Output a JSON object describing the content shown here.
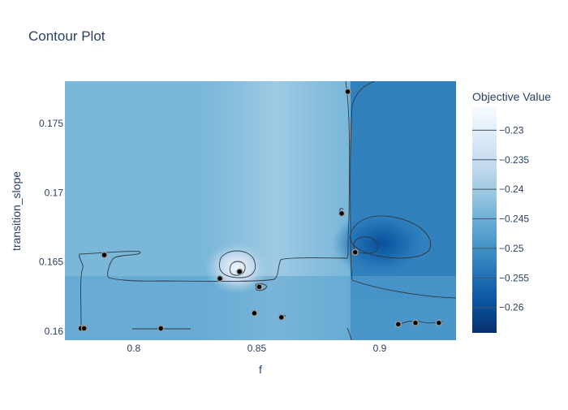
{
  "chart_data": {
    "type": "contour",
    "title": "Contour Plot",
    "xlabel": "f",
    "ylabel": "transition_slope",
    "xlim": [
      0.772,
      0.931
    ],
    "ylim": [
      0.15935,
      0.17805
    ],
    "x_ticks": [
      0.8,
      0.85,
      0.9
    ],
    "x_tick_labels": [
      "0.8",
      "0.85",
      "0.9"
    ],
    "y_ticks": [
      0.16,
      0.165,
      0.17,
      0.175
    ],
    "y_tick_labels": [
      "0.16",
      "0.165",
      "0.17",
      "0.175"
    ],
    "colorbar": {
      "title": "Objective Value",
      "range": [
        -0.2643,
        -0.2261
      ],
      "ticks": [
        -0.23,
        -0.235,
        -0.24,
        -0.245,
        -0.25,
        -0.255,
        -0.26
      ],
      "tick_labels": [
        "−0.23",
        "−0.235",
        "−0.24",
        "−0.245",
        "−0.25",
        "−0.255",
        "−0.26"
      ],
      "colorscale": [
        "#08306b",
        "#08519c",
        "#2171b5",
        "#4292c6",
        "#6baed6",
        "#9ecae1",
        "#c6dbef",
        "#deebf7",
        "#f7fbff"
      ]
    },
    "trials": [
      {
        "f": 0.788,
        "transition_slope": 0.1655
      },
      {
        "f": 0.7785,
        "transition_slope": 0.1602
      },
      {
        "f": 0.7798,
        "transition_slope": 0.1602
      },
      {
        "f": 0.811,
        "transition_slope": 0.1602
      },
      {
        "f": 0.835,
        "transition_slope": 0.1638
      },
      {
        "f": 0.843,
        "transition_slope": 0.1643
      },
      {
        "f": 0.849,
        "transition_slope": 0.1613
      },
      {
        "f": 0.851,
        "transition_slope": 0.1632
      },
      {
        "f": 0.86,
        "transition_slope": 0.161
      },
      {
        "f": 0.8845,
        "transition_slope": 0.1685
      },
      {
        "f": 0.887,
        "transition_slope": 0.1773
      },
      {
        "f": 0.89,
        "transition_slope": 0.1657
      },
      {
        "f": 0.9075,
        "transition_slope": 0.1605
      },
      {
        "f": 0.9145,
        "transition_slope": 0.1606
      },
      {
        "f": 0.924,
        "transition_slope": 0.1606
      }
    ]
  }
}
